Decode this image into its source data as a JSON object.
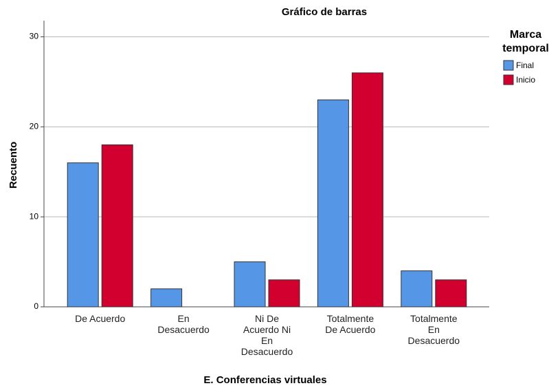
{
  "chart_data": {
    "type": "bar",
    "title": "Gráfico de barras",
    "x_label": "E. Conferencias virtuales",
    "y_label": "Recuento",
    "categories": [
      "De Acuerdo",
      "En Desacuerdo",
      "Ni De Acuerdo Ni En Desacuerdo",
      "Totalmente De Acuerdo",
      "Totalmente En Desacuerdo"
    ],
    "series": [
      {
        "name": "Final",
        "color": "#5596e6",
        "values": [
          16,
          2,
          5,
          23,
          4
        ]
      },
      {
        "name": "Inicio",
        "color": "#d2002f",
        "values": [
          18,
          0,
          3,
          26,
          3
        ]
      }
    ],
    "legend_title": "Marca temporal",
    "legend": "right",
    "ylim": [
      0,
      31.8
    ],
    "yticks": [
      0,
      10,
      20,
      30
    ],
    "grid": true
  }
}
